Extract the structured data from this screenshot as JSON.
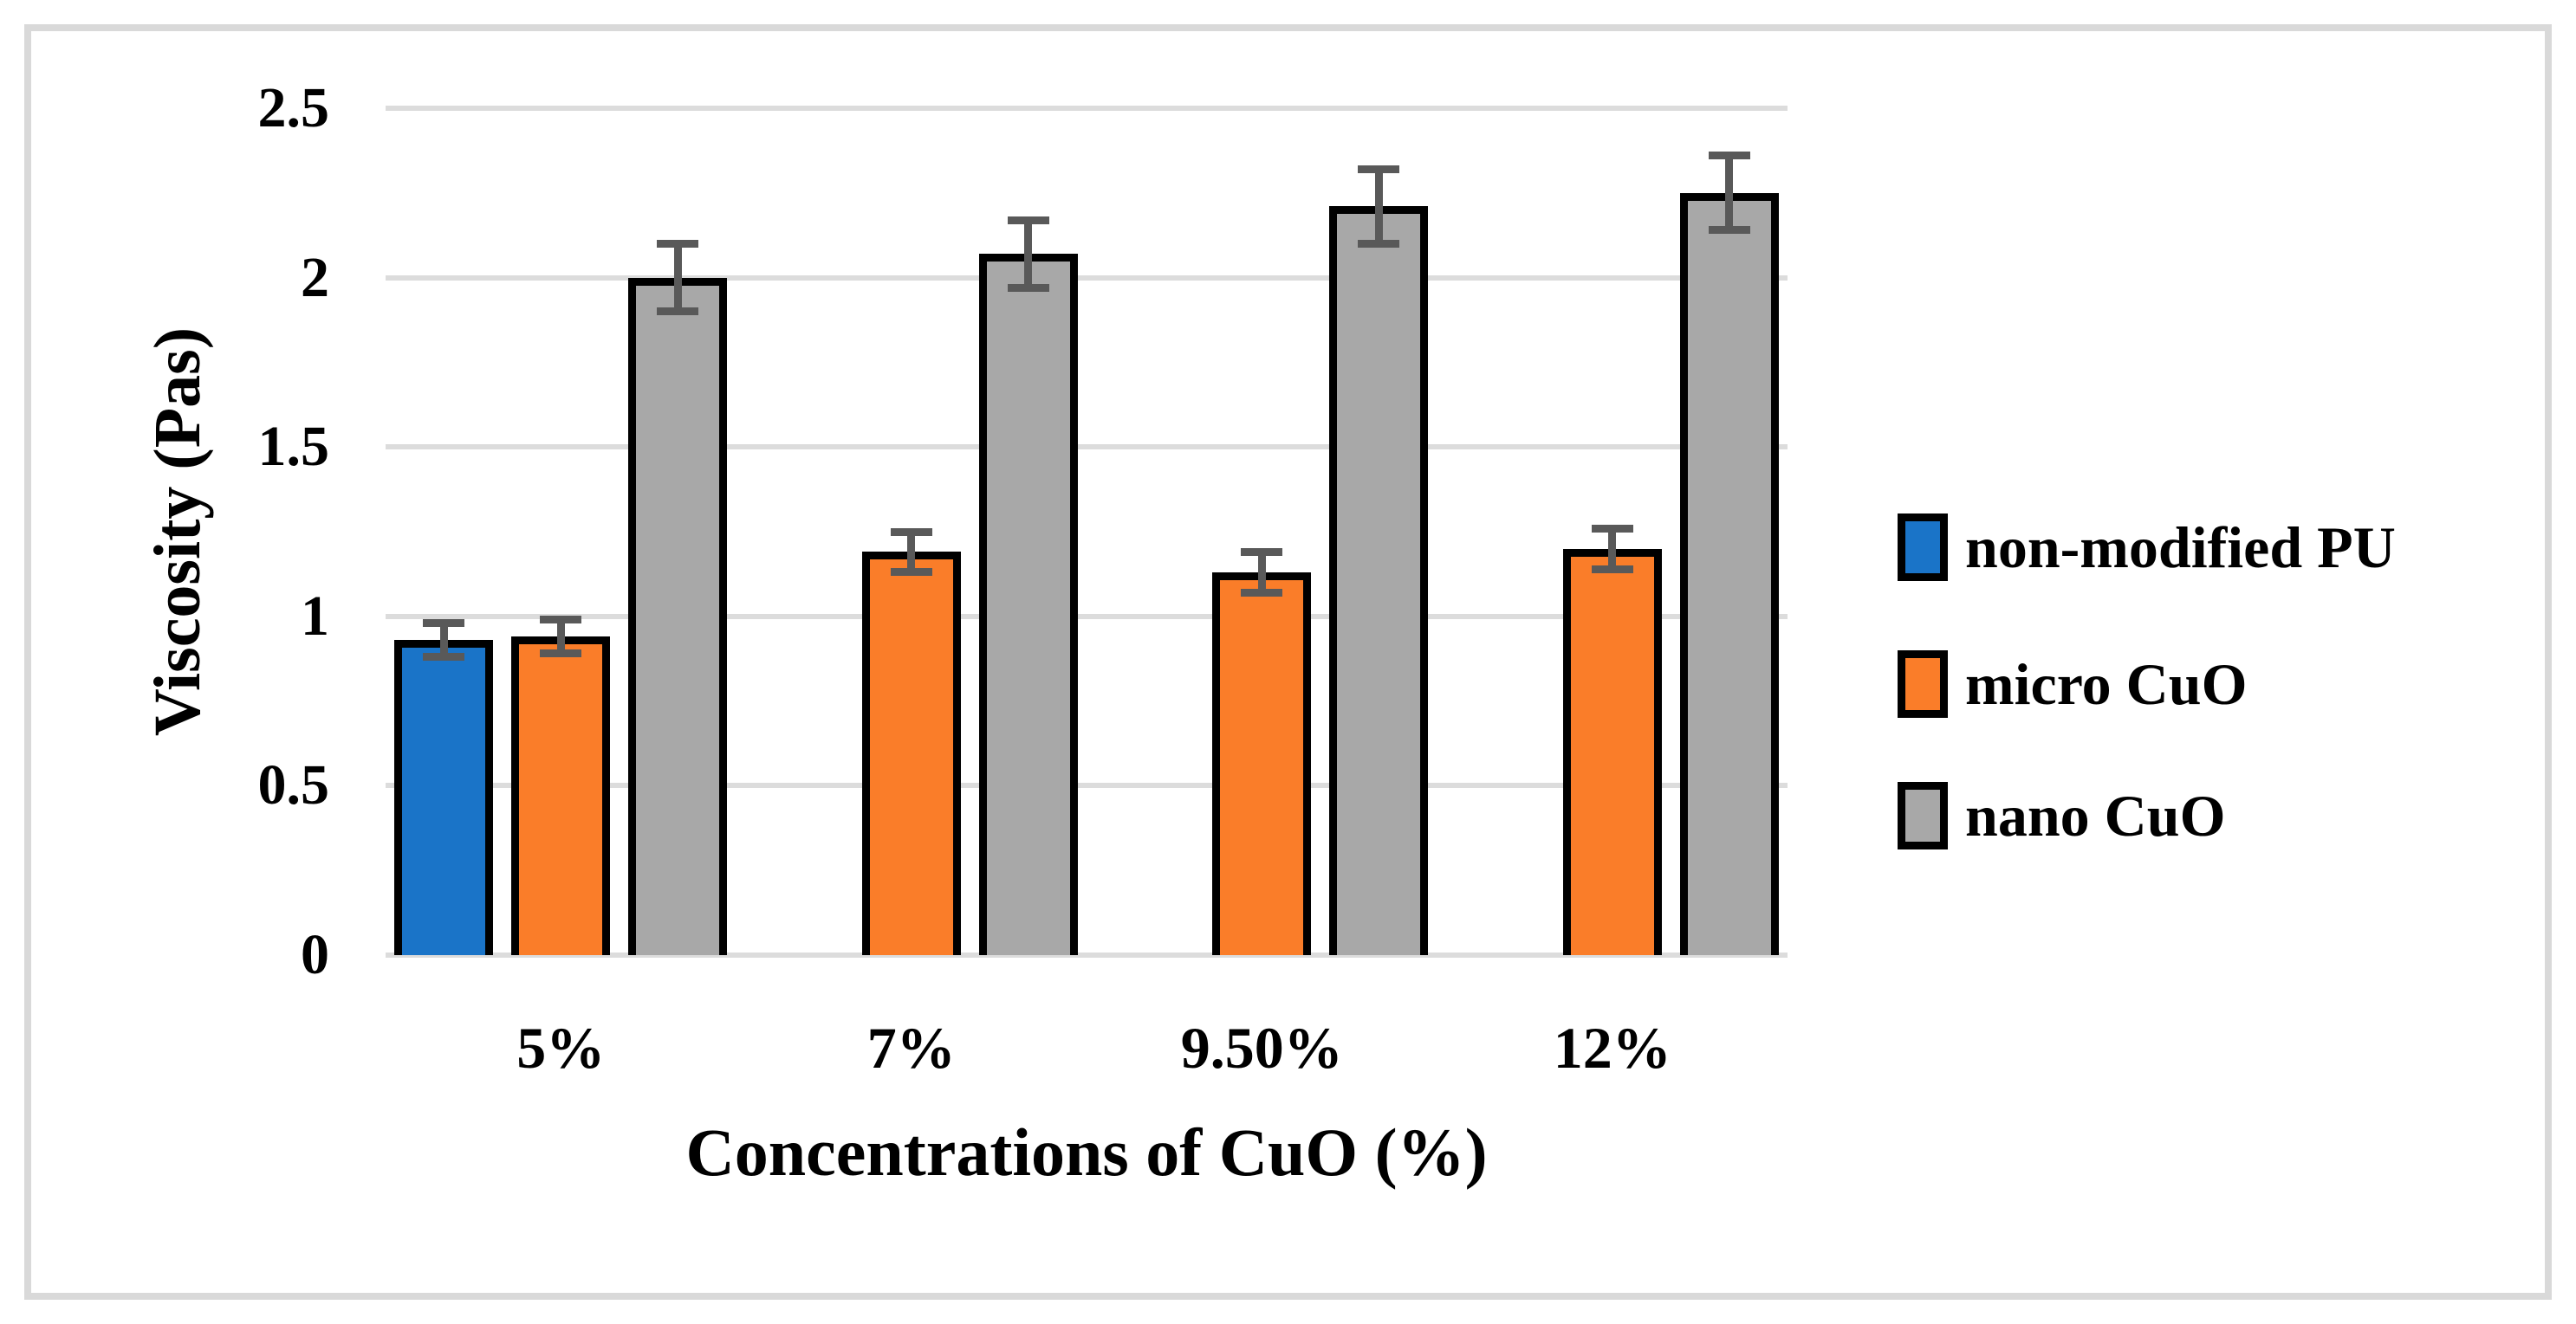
{
  "figure": {
    "background_color": "#FFFFFF",
    "frame_color": "#D9D9D9"
  },
  "chart_data": {
    "type": "bar",
    "title": "",
    "xlabel": "Concentrations of CuO (%)",
    "ylabel": "Viscosity (Pas)",
    "categories": [
      "5%",
      "7%",
      "9.50%",
      "12%"
    ],
    "y_ticks": [
      {
        "label": "0",
        "value": 0
      },
      {
        "label": "0.5",
        "value": 0.5
      },
      {
        "label": "1",
        "value": 1
      },
      {
        "label": "1.5",
        "value": 1.5
      },
      {
        "label": "2",
        "value": 2
      },
      {
        "label": "2.5",
        "value": 2.5
      }
    ],
    "ylim": [
      0,
      2.5
    ],
    "grid": true,
    "legend_position": "right",
    "series": [
      {
        "name": "non-modified PU",
        "color": "#1A74C8",
        "values": [
          0.93,
          null,
          null,
          null
        ],
        "errors": [
          0.05,
          null,
          null,
          null
        ]
      },
      {
        "name": "micro CuO",
        "color": "#FA7D29",
        "values": [
          0.94,
          1.19,
          1.13,
          1.2
        ],
        "errors": [
          0.05,
          0.06,
          0.06,
          0.06
        ]
      },
      {
        "name": "nano CuO",
        "color": "#A8A8A8",
        "values": [
          2.0,
          2.07,
          2.21,
          2.25
        ],
        "errors": [
          0.1,
          0.1,
          0.11,
          0.11
        ]
      }
    ],
    "style": {
      "bar_outline_color": "#000000",
      "error_bar_color": "#595959",
      "gridline_color": "#DCDCDC"
    }
  }
}
